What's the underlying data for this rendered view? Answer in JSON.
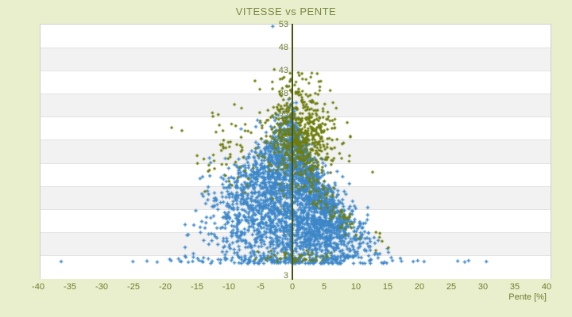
{
  "title": "VITESSE vs PENTE",
  "axes": {
    "x_title": "Pente [%]",
    "x_ticks": [
      -40,
      -35,
      -30,
      -25,
      -20,
      -15,
      -10,
      -5,
      0,
      5,
      10,
      15,
      20,
      25,
      30,
      35,
      40
    ],
    "y_ticks": [
      53,
      48,
      43,
      38,
      33,
      28,
      23,
      18,
      13,
      8,
      3
    ]
  },
  "colors": {
    "background": "#e9efcc",
    "band_gray": "#f2f2f2",
    "band_white": "#ffffff",
    "plot_border": "#cfcfcf",
    "zero_line": "#49530f",
    "text_olive": "#6e7c31",
    "title_olive": "#7a8742",
    "series_blue": "#3d87c8",
    "series_olive": "#6f7d0c"
  },
  "chart_data": {
    "type": "scatter",
    "title": "VITESSE vs PENTE",
    "xlabel": "Pente [%]",
    "ylabel": "",
    "xlim": [
      -40,
      40
    ],
    "ylim": [
      -2,
      53
    ],
    "x_tick_step": 5,
    "y_tick_values": [
      53,
      48,
      43,
      38,
      33,
      28,
      23,
      18,
      13,
      8,
      3
    ],
    "grid": "alternating-horizontal-bands",
    "band_count": 11,
    "legend": "none",
    "zero_axis_line_x": 0,
    "series": [
      {
        "name": "series-blue",
        "color": "#3d87c8",
        "marker": "plus",
        "approx_n": 3130
      },
      {
        "name": "series-olive",
        "color": "#6f7d0c",
        "marker": "diamond",
        "approx_n": 760
      }
    ],
    "generator": {
      "seed": 42,
      "blue": {
        "main": {
          "n": 2900,
          "x_mix": [
            {
              "w": 0.62,
              "mu": 2.2,
              "sd": 4.2
            },
            {
              "w": 0.38,
              "mu": -3.5,
              "sd": 4.8
            }
          ],
          "x_clip": [
            -17,
            21
          ],
          "env_amp": 28,
          "env_floor": 2.5,
          "pos_scale": 7,
          "neg_scale": 16,
          "r_pow": 0.75,
          "r_gain": 1.12,
          "v_jitter": 2,
          "high_frac": 0.04,
          "high_boost": 7,
          "v_clip": [
            1.2,
            46
          ]
        },
        "bottom_row": {
          "n": 130,
          "x_mix": [
            {
              "w": 0.7,
              "mu": 1,
              "sd": 7
            },
            {
              "w": 0.3,
              "mu": -8,
              "sd": 7
            }
          ],
          "x_clip": [
            -27,
            23
          ],
          "v_min": 1.2,
          "v_span": 1.4
        },
        "zero_column": {
          "n": 90,
          "x_min": -0.5,
          "x_max": -0.15,
          "v_min": 2,
          "v_max": 23
        }
      },
      "olive": {
        "main": {
          "n": 520,
          "x_mu": 0.8,
          "x_sd": 2.9,
          "x_clip": [
            -13,
            9
          ],
          "v_mu": 29,
          "v_sd": 4.5,
          "v_clip": [
            14,
            43.5
          ]
        },
        "crest": {
          "n": 35,
          "x_mu": 0.5,
          "x_sd": 2.0,
          "v_min": 37.5,
          "v_span": 5.5
        },
        "arm": {
          "n": 110,
          "x_off": 0.5,
          "x_sd": 5.5,
          "x_max": 15,
          "amp": 26,
          "scale": 7,
          "floor": 2.5,
          "v_jitter": 1.5
        },
        "left": {
          "n": 55,
          "x_off": -7,
          "x_sd": 4.5,
          "x_clip": [
            -22,
            -6
          ],
          "v_mu": 26,
          "v_sd": 5
        },
        "bottom": {
          "n": 40,
          "x_mu": 0.5,
          "x_sd": 3.2,
          "v_min": 1.4,
          "v_span": 2.6
        }
      },
      "outliers": {
        "blue": [
          [
            -36.5,
            1.6
          ],
          [
            -25.2,
            1.6
          ],
          [
            -23.0,
            1.7
          ],
          [
            -21.4,
            1.5
          ],
          [
            -19.2,
            1.8
          ],
          [
            -17.6,
            1.6
          ],
          [
            18.9,
            1.6
          ],
          [
            19.6,
            1.8
          ],
          [
            20.6,
            1.6
          ],
          [
            25.9,
            1.7
          ],
          [
            27.0,
            1.5
          ],
          [
            27.6,
            1.8
          ],
          [
            30.4,
            1.6
          ],
          [
            -3.2,
            52.6
          ]
        ],
        "olive": [
          [
            -17.5,
            30.0
          ],
          [
            12.5,
            21.0
          ],
          [
            14.0,
            6.0
          ]
        ]
      }
    }
  }
}
